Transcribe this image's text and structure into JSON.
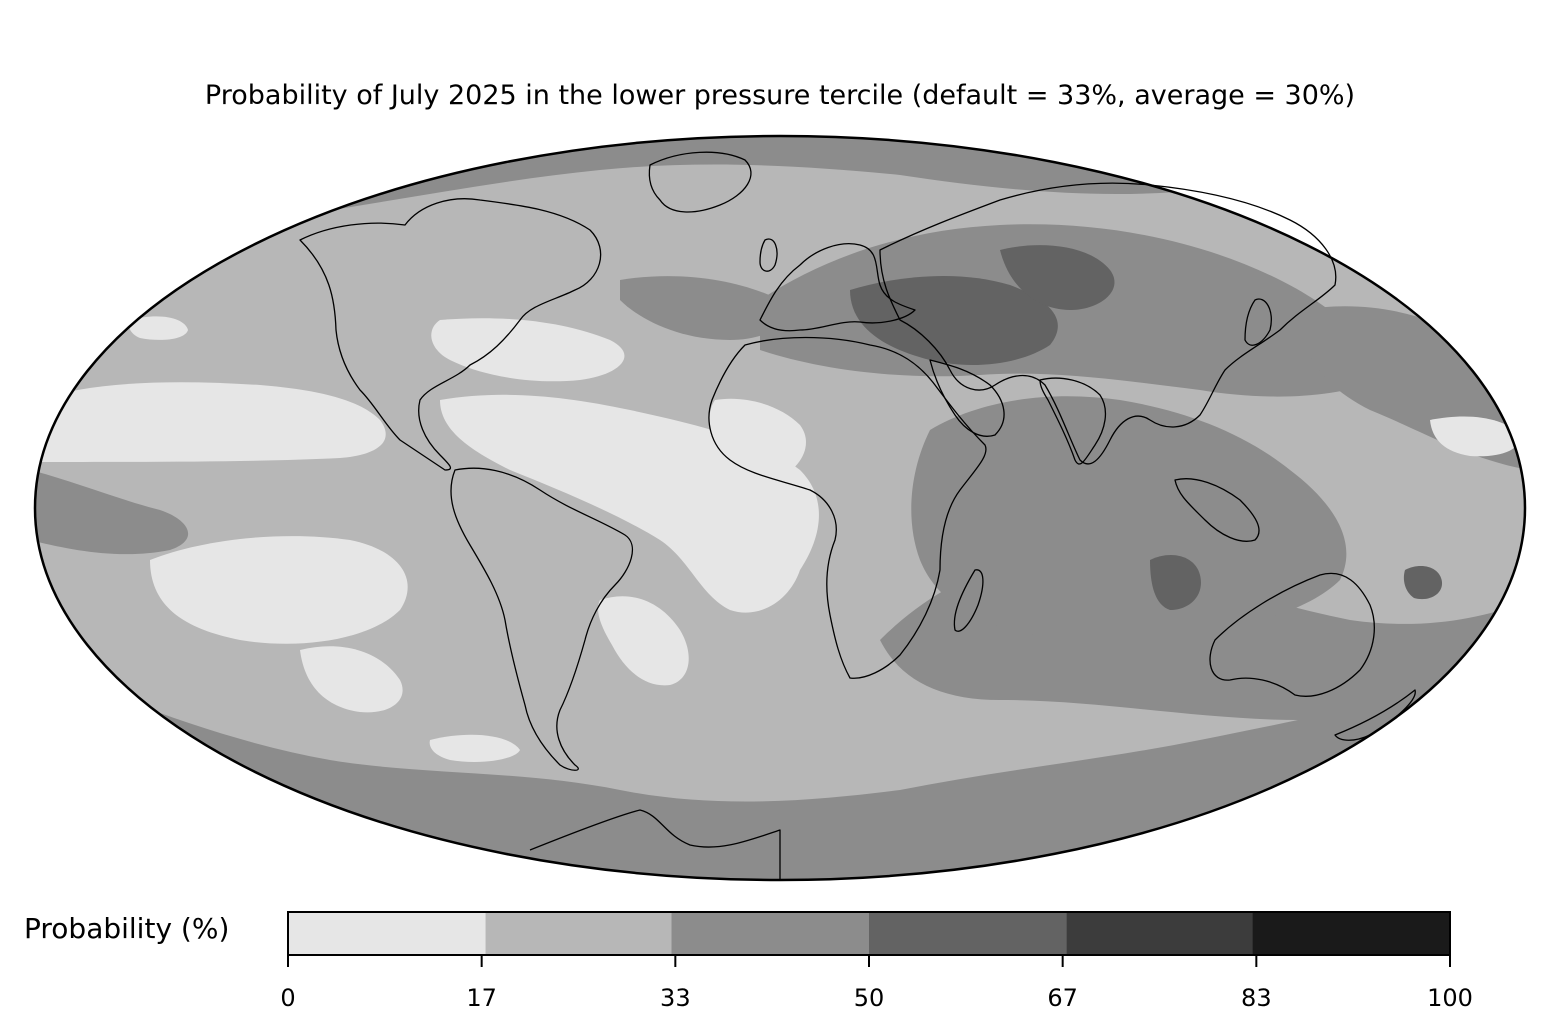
{
  "title": "Probability of July 2025 in the lower pressure tercile (default = 33%, average = 30%)",
  "colorbar": {
    "label": "Probability (%)",
    "ticks": [
      "0",
      "17",
      "33",
      "50",
      "67",
      "83",
      "100"
    ],
    "bins": [
      {
        "from": 0,
        "to": 17,
        "color": "#e6e6e6"
      },
      {
        "from": 17,
        "to": 33,
        "color": "#b7b7b7"
      },
      {
        "from": 33,
        "to": 50,
        "color": "#8c8c8c"
      },
      {
        "from": 50,
        "to": 67,
        "color": "#636363"
      },
      {
        "from": 67,
        "to": 83,
        "color": "#3c3c3c"
      },
      {
        "from": 83,
        "to": 100,
        "color": "#1a1a1a"
      }
    ]
  },
  "map": {
    "projection": "mollweide",
    "colors": {
      "low": "#e6e6e6",
      "midlow": "#b7b7b7",
      "mid": "#8c8c8c",
      "high": "#636363",
      "coast": "#000000",
      "border": "#777777"
    }
  }
}
